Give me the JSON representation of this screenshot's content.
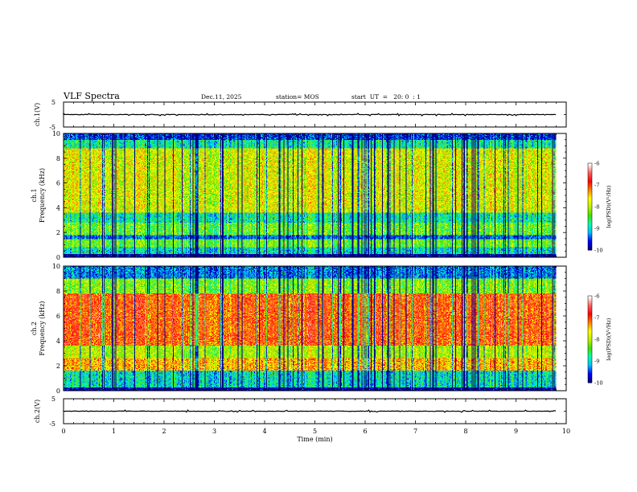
{
  "header": {
    "title": "VLF Spectra",
    "date": "Dec.11, 2025",
    "station": "station= MOS",
    "start": "start  UT  =   20: 0  : 1"
  },
  "chart_data": [
    {
      "type": "line",
      "panel": "ch1-waveform",
      "ylabel": "ch.1(V)",
      "xlim": [
        0,
        10
      ],
      "ylim": [
        -5,
        5
      ],
      "ytick_labels": [
        "-5",
        "5"
      ],
      "series": [
        {
          "x": [
            0,
            9.8
          ],
          "values": [
            0,
            0
          ]
        }
      ],
      "color": "#000000"
    },
    {
      "type": "heatmap",
      "panel": "ch1-spectrogram",
      "ylabel": "ch.1\nFrequency (kHz)",
      "ylabel_line1": "ch.1",
      "ylabel_line2": "Frequency (kHz)",
      "xlim": [
        0,
        10
      ],
      "data_xlim": [
        0,
        9.8
      ],
      "ylim": [
        0,
        10
      ],
      "ytick_labels": [
        "0",
        "2",
        "4",
        "6",
        "8",
        "10"
      ],
      "band_levels": [
        {
          "f": [
            0,
            0.3
          ],
          "level": -10
        },
        {
          "f": [
            0.3,
            0.8
          ],
          "level": -8.9
        },
        {
          "f": [
            0.8,
            1.5
          ],
          "level": -8.3
        },
        {
          "f": [
            1.5,
            1.8
          ],
          "level": -9.4
        },
        {
          "f": [
            1.8,
            2.8
          ],
          "level": -8.3
        },
        {
          "f": [
            2.8,
            3.6
          ],
          "level": -8.8
        },
        {
          "f": [
            3.6,
            8.8
          ],
          "level": -7.8
        },
        {
          "f": [
            8.8,
            9.5
          ],
          "level": -8.8
        },
        {
          "f": [
            9.5,
            10
          ],
          "level": -9.6
        }
      ],
      "colorbar": {
        "min": -10,
        "max": -6,
        "ticks": [
          "-6",
          "-7",
          "-8",
          "-9",
          "-10"
        ],
        "label": "log(PSD)(V²/Hz)"
      }
    },
    {
      "type": "heatmap",
      "panel": "ch2-spectrogram",
      "ylabel": "ch.2\nFrequency (kHz)",
      "ylabel_line1": "ch.2",
      "ylabel_line2": "Frequency (kHz)",
      "xlim": [
        0,
        10
      ],
      "data_xlim": [
        0,
        9.8
      ],
      "ylim": [
        0,
        10
      ],
      "ytick_labels": [
        "0",
        "2",
        "4",
        "6",
        "8",
        "10"
      ],
      "band_levels": [
        {
          "f": [
            0,
            0.3
          ],
          "level": -10
        },
        {
          "f": [
            0.3,
            1.6
          ],
          "level": -8.9
        },
        {
          "f": [
            1.6,
            2.6
          ],
          "level": -7.4
        },
        {
          "f": [
            2.6,
            3.6
          ],
          "level": -8.0
        },
        {
          "f": [
            3.6,
            7.8
          ],
          "level": -7.0
        },
        {
          "f": [
            7.8,
            9.0
          ],
          "level": -8.2
        },
        {
          "f": [
            9.0,
            10
          ],
          "level": -9.3
        }
      ],
      "colorbar": {
        "min": -10,
        "max": -6,
        "ticks": [
          "-6",
          "-7",
          "-8",
          "-9",
          "-10"
        ],
        "label": "log(PSD)(V²/Hz)"
      }
    },
    {
      "type": "line",
      "panel": "ch2-waveform",
      "ylabel": "ch.2(V)",
      "xlim": [
        0,
        10
      ],
      "ylim": [
        -5,
        5
      ],
      "ytick_labels": [
        "-5",
        "5"
      ],
      "series": [
        {
          "x": [
            0,
            9.8
          ],
          "values": [
            0,
            0
          ]
        }
      ],
      "color": "#000000"
    }
  ],
  "xaxis": {
    "label": "Time  (min)",
    "ticks": [
      0,
      1,
      2,
      3,
      4,
      5,
      6,
      7,
      8,
      9,
      10
    ],
    "tick_labels": [
      "0",
      "1",
      "2",
      "3",
      "4",
      "5",
      "6",
      "7",
      "8",
      "9",
      "10"
    ]
  },
  "colorscale": [
    "#000080",
    "#0000ff",
    "#00bfff",
    "#00ffb0",
    "#40e000",
    "#c0f000",
    "#ffff00",
    "#ff8000",
    "#ff0000",
    "#ff6060",
    "#ffffff"
  ]
}
